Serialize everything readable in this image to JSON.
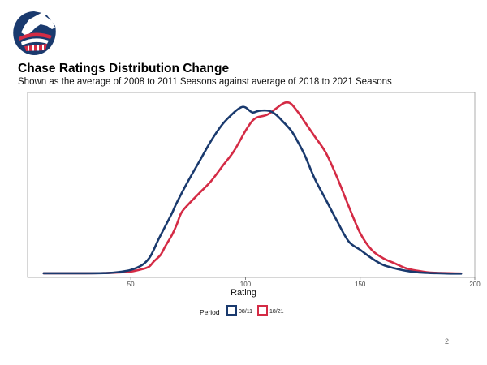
{
  "header": {
    "title": "Chase Ratings Distribution Change",
    "subtitle": "Shown as the average of 2008 to 2011 Seasons against average of 2018 to 2021 Seasons"
  },
  "logo": {
    "icon": "horse-head-logo",
    "colors": {
      "navy": "#1a3a6e",
      "red": "#d42b45"
    }
  },
  "chart_data": {
    "type": "line",
    "title": "",
    "xlabel": "Rating",
    "ylabel": "",
    "xlim": [
      5,
      200
    ],
    "ylim": [
      0,
      1.06
    ],
    "x_ticks": [
      50,
      100,
      150,
      200
    ],
    "y_ticks_visible": false,
    "grid": false,
    "legend": {
      "title": "Period",
      "placement": "bottom"
    },
    "series": [
      {
        "name": "08/11",
        "color": "#1a3a6e",
        "x": [
          12,
          30,
          40,
          45,
          50,
          55,
          58,
          60,
          62,
          65,
          68,
          70,
          75,
          80,
          85,
          90,
          95,
          98,
          100,
          103,
          106,
          110,
          113,
          116,
          120,
          123,
          126,
          130,
          135,
          140,
          145,
          150,
          155,
          160,
          165,
          170,
          175,
          180,
          185,
          190,
          194
        ],
        "y": [
          0.01,
          0.01,
          0.012,
          0.018,
          0.03,
          0.06,
          0.1,
          0.15,
          0.21,
          0.29,
          0.37,
          0.43,
          0.56,
          0.68,
          0.8,
          0.9,
          0.97,
          1.0,
          1.0,
          0.97,
          0.98,
          0.98,
          0.96,
          0.92,
          0.86,
          0.79,
          0.71,
          0.58,
          0.45,
          0.32,
          0.2,
          0.15,
          0.1,
          0.06,
          0.04,
          0.025,
          0.016,
          0.012,
          0.01,
          0.008,
          0.008
        ]
      },
      {
        "name": "18/21",
        "color": "#d42b45",
        "x": [
          12,
          30,
          40,
          45,
          50,
          55,
          58,
          60,
          63,
          65,
          68,
          70,
          72,
          75,
          80,
          85,
          90,
          95,
          100,
          103,
          105,
          108,
          110,
          113,
          116,
          118,
          120,
          123,
          126,
          130,
          135,
          140,
          145,
          150,
          155,
          160,
          165,
          170,
          175,
          180,
          185,
          190,
          194
        ],
        "y": [
          0.01,
          0.01,
          0.012,
          0.015,
          0.02,
          0.035,
          0.05,
          0.08,
          0.12,
          0.17,
          0.24,
          0.3,
          0.37,
          0.42,
          0.49,
          0.56,
          0.65,
          0.74,
          0.86,
          0.92,
          0.94,
          0.95,
          0.96,
          0.99,
          1.02,
          1.03,
          1.02,
          0.97,
          0.91,
          0.83,
          0.73,
          0.58,
          0.41,
          0.25,
          0.15,
          0.1,
          0.07,
          0.04,
          0.025,
          0.015,
          0.012,
          0.01,
          0.009
        ]
      }
    ]
  },
  "page": {
    "number": "2"
  }
}
